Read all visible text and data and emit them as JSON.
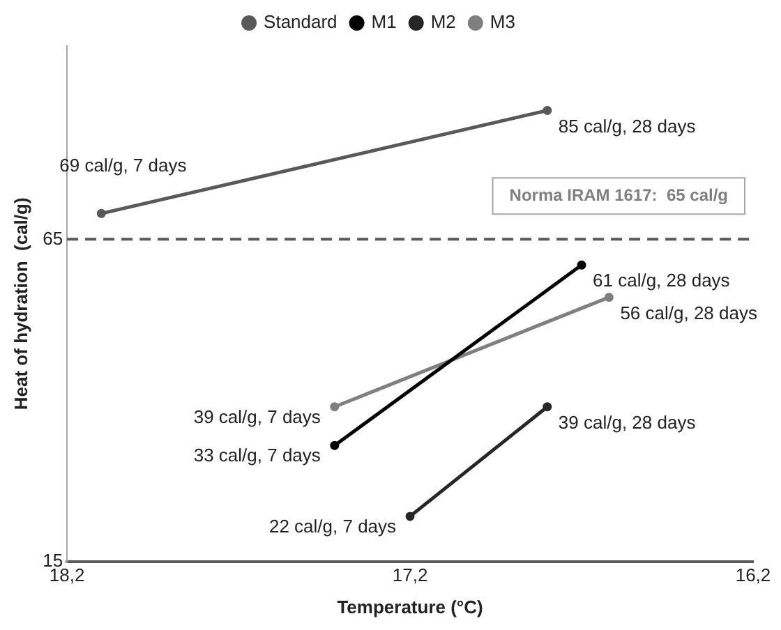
{
  "chart_data": {
    "type": "line",
    "xlabel": "Temperature (°C)",
    "ylabel": "Heat of hydration  (cal/g)",
    "xlim": [
      18.2,
      16.2
    ],
    "xticks": [
      {
        "value": 18.2,
        "label": "18,2"
      },
      {
        "value": 17.2,
        "label": "17,2"
      },
      {
        "value": 16.2,
        "label": "16,2"
      }
    ],
    "ylim": [
      15,
      95
    ],
    "yticks": [
      15,
      65
    ],
    "legend": "top",
    "marker": "circle",
    "line_style": "solid",
    "series": [
      {
        "name": "Standard",
        "color": "#595959",
        "x": [
          18.1,
          16.8
        ],
        "values": [
          69,
          85
        ],
        "value_labels": [
          "69 cal/g, 7 days",
          "85 cal/g, 28 days"
        ]
      },
      {
        "name": "M1",
        "color": "#000000",
        "x": [
          17.42,
          16.7
        ],
        "values": [
          33,
          61
        ],
        "value_labels": [
          "33 cal/g, 7 days",
          "61 cal/g, 28 days"
        ]
      },
      {
        "name": "M2",
        "color": "#262626",
        "x": [
          17.2,
          16.8
        ],
        "values": [
          22,
          39
        ],
        "value_labels": [
          "22 cal/g, 7 days",
          "39 cal/g, 28 days"
        ]
      },
      {
        "name": "M3",
        "color": "#7f7f7f",
        "x": [
          17.42,
          16.62
        ],
        "values": [
          39,
          56
        ],
        "value_labels": [
          "39 cal/g, 7 days",
          "56 cal/g, 28 days"
        ]
      }
    ],
    "ref_lines": [
      {
        "axis": "y",
        "value": 65,
        "label": "Norma IRAM 1617:  65 cal/g",
        "color": "#595959",
        "line_style": "dashed"
      }
    ]
  }
}
